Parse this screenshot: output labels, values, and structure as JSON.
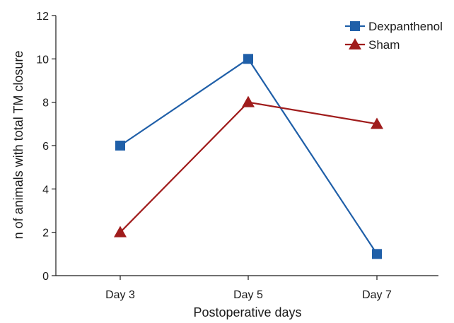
{
  "chart_data": {
    "type": "line",
    "categories": [
      "Day 3",
      "Day 5",
      "Day 7"
    ],
    "series": [
      {
        "name": "Dexpanthenol",
        "values": [
          6,
          10,
          1
        ],
        "color": "#1f5fa8",
        "marker": "square"
      },
      {
        "name": "Sham",
        "values": [
          2,
          8,
          7
        ],
        "color": "#a01c1c",
        "marker": "triangle"
      }
    ],
    "xlabel": "Postoperative days",
    "ylabel": "n of animals with total TM closure",
    "ylim": [
      0,
      12
    ],
    "yticks": [
      0,
      2,
      4,
      6,
      8,
      10,
      12
    ],
    "grid": false,
    "legend": "top-right"
  }
}
